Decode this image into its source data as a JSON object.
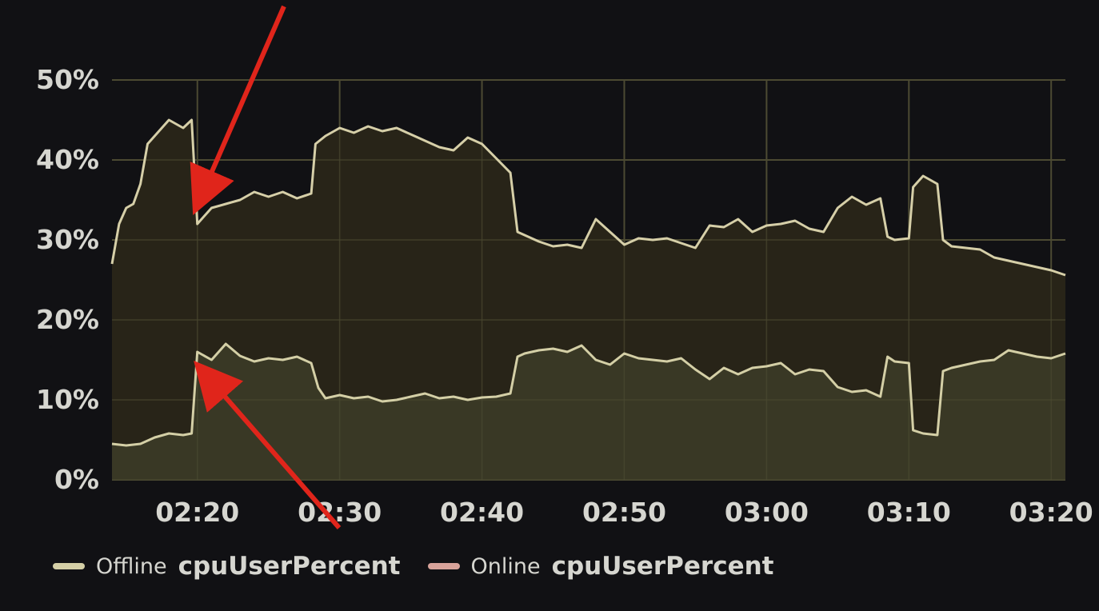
{
  "chart_data": {
    "type": "area",
    "ylim": [
      0,
      50
    ],
    "yticks": [
      "0%",
      "10%",
      "20%",
      "30%",
      "40%",
      "50%"
    ],
    "xlim": [
      "02:14",
      "03:21"
    ],
    "xticks": [
      "02:20",
      "02:30",
      "02:40",
      "02:50",
      "03:00",
      "03:10",
      "03:20"
    ],
    "grid": true,
    "legend_position": "bottom-left",
    "series": [
      {
        "name": "Offline",
        "metric": "cpuUserPercent",
        "color": "#d4cfa6",
        "points": [
          [
            "02:14",
            4.5
          ],
          [
            "02:15",
            4.3
          ],
          [
            "02:16",
            4.5
          ],
          [
            "02:17",
            5.3
          ],
          [
            "02:18",
            5.8
          ],
          [
            "02:19",
            5.6
          ],
          [
            "02:19.6",
            5.8
          ],
          [
            "02:20",
            16.0
          ],
          [
            "02:21",
            15.0
          ],
          [
            "02:22",
            17.0
          ],
          [
            "02:23",
            15.5
          ],
          [
            "02:24",
            14.8
          ],
          [
            "02:25",
            15.2
          ],
          [
            "02:26",
            15.0
          ],
          [
            "02:27",
            15.4
          ],
          [
            "02:28",
            14.6
          ],
          [
            "02:28.5",
            11.5
          ],
          [
            "02:29",
            10.2
          ],
          [
            "02:30",
            10.6
          ],
          [
            "02:31",
            10.2
          ],
          [
            "02:32",
            10.4
          ],
          [
            "02:33",
            9.8
          ],
          [
            "02:34",
            10.0
          ],
          [
            "02:35",
            10.4
          ],
          [
            "02:36",
            10.8
          ],
          [
            "02:37",
            10.2
          ],
          [
            "02:38",
            10.4
          ],
          [
            "02:39",
            10.0
          ],
          [
            "02:40",
            10.3
          ],
          [
            "02:41",
            10.4
          ],
          [
            "02:42",
            10.8
          ],
          [
            "02:42.5",
            15.4
          ],
          [
            "02:43",
            15.8
          ],
          [
            "02:44",
            16.2
          ],
          [
            "02:45",
            16.4
          ],
          [
            "02:46",
            16.0
          ],
          [
            "02:47",
            16.8
          ],
          [
            "02:48",
            15.0
          ],
          [
            "02:49",
            14.4
          ],
          [
            "02:50",
            15.8
          ],
          [
            "02:51",
            15.2
          ],
          [
            "02:52",
            15.0
          ],
          [
            "02:53",
            14.8
          ],
          [
            "02:54",
            15.2
          ],
          [
            "02:55",
            13.8
          ],
          [
            "02:56",
            12.6
          ],
          [
            "02:57",
            14.0
          ],
          [
            "02:58",
            13.2
          ],
          [
            "02:59",
            14.0
          ],
          [
            "03:00",
            14.2
          ],
          [
            "03:01",
            14.6
          ],
          [
            "03:02",
            13.2
          ],
          [
            "03:03",
            13.8
          ],
          [
            "03:04",
            13.6
          ],
          [
            "03:05",
            11.6
          ],
          [
            "03:06",
            11.0
          ],
          [
            "03:07",
            11.2
          ],
          [
            "03:08",
            10.4
          ],
          [
            "03:08.5",
            15.4
          ],
          [
            "03:09",
            14.8
          ],
          [
            "03:10",
            14.6
          ],
          [
            "03:10.3",
            6.2
          ],
          [
            "03:11",
            5.8
          ],
          [
            "03:12",
            5.6
          ],
          [
            "03:12.4",
            13.6
          ],
          [
            "03:13",
            14.0
          ],
          [
            "03:14",
            14.4
          ],
          [
            "03:15",
            14.8
          ],
          [
            "03:16",
            15.0
          ],
          [
            "03:17",
            16.2
          ],
          [
            "03:18",
            15.8
          ],
          [
            "03:19",
            15.4
          ],
          [
            "03:20",
            15.2
          ],
          [
            "03:21",
            15.8
          ]
        ]
      },
      {
        "name": "Online",
        "metric": "cpuUserPercent",
        "color": "#d8a39a",
        "points": [
          [
            "02:14",
            27.0
          ],
          [
            "02:14.5",
            32.0
          ],
          [
            "02:15",
            34.0
          ],
          [
            "02:15.5",
            34.5
          ],
          [
            "02:16",
            37.0
          ],
          [
            "02:16.5",
            42.0
          ],
          [
            "02:17",
            43.0
          ],
          [
            "02:18",
            45.0
          ],
          [
            "02:19",
            44.0
          ],
          [
            "02:19.6",
            45.0
          ],
          [
            "02:20",
            32.0
          ],
          [
            "02:21",
            34.0
          ],
          [
            "02:22",
            34.5
          ],
          [
            "02:23",
            35.0
          ],
          [
            "02:24",
            36.0
          ],
          [
            "02:25",
            35.4
          ],
          [
            "02:26",
            36.0
          ],
          [
            "02:27",
            35.2
          ],
          [
            "02:28",
            35.8
          ],
          [
            "02:28.3",
            42.0
          ],
          [
            "02:29",
            43.0
          ],
          [
            "02:30",
            44.0
          ],
          [
            "02:31",
            43.4
          ],
          [
            "02:32",
            44.2
          ],
          [
            "02:33",
            43.6
          ],
          [
            "02:34",
            44.0
          ],
          [
            "02:35",
            43.2
          ],
          [
            "02:36",
            42.4
          ],
          [
            "02:37",
            41.6
          ],
          [
            "02:38",
            41.2
          ],
          [
            "02:39",
            42.8
          ],
          [
            "02:40",
            42.0
          ],
          [
            "02:41",
            40.2
          ],
          [
            "02:42",
            38.4
          ],
          [
            "02:42.5",
            31.0
          ],
          [
            "02:43",
            30.6
          ],
          [
            "02:44",
            29.8
          ],
          [
            "02:45",
            29.2
          ],
          [
            "02:46",
            29.4
          ],
          [
            "02:47",
            29.0
          ],
          [
            "02:48",
            32.6
          ],
          [
            "02:49",
            31.0
          ],
          [
            "02:50",
            29.4
          ],
          [
            "02:51",
            30.2
          ],
          [
            "02:52",
            30.0
          ],
          [
            "02:53",
            30.2
          ],
          [
            "02:54",
            29.6
          ],
          [
            "02:55",
            29.0
          ],
          [
            "02:56",
            31.8
          ],
          [
            "02:57",
            31.6
          ],
          [
            "02:58",
            32.6
          ],
          [
            "02:59",
            31.0
          ],
          [
            "03:00",
            31.8
          ],
          [
            "03:01",
            32.0
          ],
          [
            "03:02",
            32.4
          ],
          [
            "03:03",
            31.4
          ],
          [
            "03:04",
            31.0
          ],
          [
            "03:05",
            34.0
          ],
          [
            "03:06",
            35.4
          ],
          [
            "03:07",
            34.4
          ],
          [
            "03:08",
            35.2
          ],
          [
            "03:08.5",
            30.4
          ],
          [
            "03:09",
            30.0
          ],
          [
            "03:10",
            30.2
          ],
          [
            "03:10.3",
            36.6
          ],
          [
            "03:11",
            38.0
          ],
          [
            "03:12",
            37.0
          ],
          [
            "03:12.4",
            30.0
          ],
          [
            "03:13",
            29.2
          ],
          [
            "03:14",
            29.0
          ],
          [
            "03:15",
            28.8
          ],
          [
            "03:16",
            27.8
          ],
          [
            "03:17",
            27.4
          ],
          [
            "03:18",
            27.0
          ],
          [
            "03:19",
            26.6
          ],
          [
            "03:20",
            26.2
          ],
          [
            "03:21",
            25.6
          ]
        ]
      }
    ],
    "annotations": [
      {
        "type": "arrow",
        "target_series": "Online",
        "target_x": "02:20",
        "color": "#e0251b"
      },
      {
        "type": "arrow",
        "target_series": "Offline",
        "target_x": "02:20",
        "color": "#e0251b"
      }
    ]
  },
  "legend": [
    {
      "name": "Offline",
      "metric": "cpuUserPercent",
      "color": "#d4cfa6"
    },
    {
      "name": "Online",
      "metric": "cpuUserPercent",
      "color": "#d8a39a"
    }
  ],
  "colors": {
    "background": "#111114",
    "grid": "#4c4a33",
    "tick_text": "#d6d6d0",
    "online_fill": "#2a2618",
    "offline_fill": "#3a3a26",
    "arrow": "#e0251b"
  }
}
